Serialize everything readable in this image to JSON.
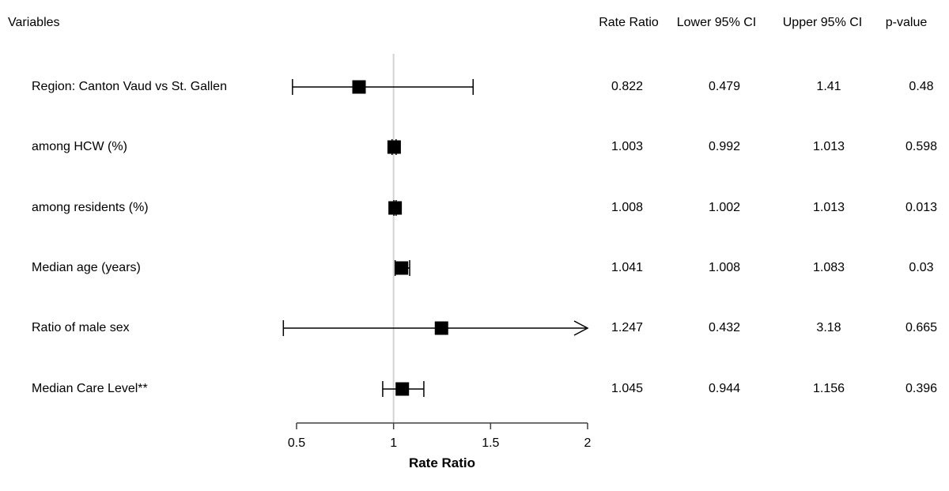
{
  "table": {
    "variables_header": "Variables",
    "columns": [
      {
        "label": "Rate Ratio"
      },
      {
        "label": "Lower 95% CI"
      },
      {
        "label": "Upper 95% CI"
      },
      {
        "label": "p-value"
      }
    ]
  },
  "chart_data": {
    "type": "forest",
    "title": "",
    "xlabel": "Rate Ratio",
    "xlim": [
      0.5,
      2
    ],
    "x_ticks": [
      0.5,
      1,
      1.5,
      2
    ],
    "reference_line": 1,
    "grid": false,
    "legend": "none",
    "colors": {
      "marker": "#000000",
      "ci_line": "#000000",
      "reference_line": "#d3d3d3",
      "axis": "#404040",
      "text": "#000000",
      "background": "#ffffff"
    },
    "rows": [
      {
        "label": "Region: Canton Vaud vs St. Gallen",
        "rate_ratio": 0.822,
        "lower": 0.479,
        "upper": 1.41,
        "p_value": 0.48
      },
      {
        "label": "among HCW (%)",
        "rate_ratio": 1.003,
        "lower": 0.992,
        "upper": 1.013,
        "p_value": 0.598
      },
      {
        "label": "among residents (%)",
        "rate_ratio": 1.008,
        "lower": 1.002,
        "upper": 1.013,
        "p_value": 0.013
      },
      {
        "label": "Median age (years)",
        "rate_ratio": 1.041,
        "lower": 1.008,
        "upper": 1.083,
        "p_value": 0.03
      },
      {
        "label": "Ratio of male sex",
        "rate_ratio": 1.247,
        "lower": 0.432,
        "upper": 3.18,
        "p_value": 0.665
      },
      {
        "label": "Median Care Level**",
        "rate_ratio": 1.045,
        "lower": 0.944,
        "upper": 1.156,
        "p_value": 0.396
      }
    ]
  }
}
